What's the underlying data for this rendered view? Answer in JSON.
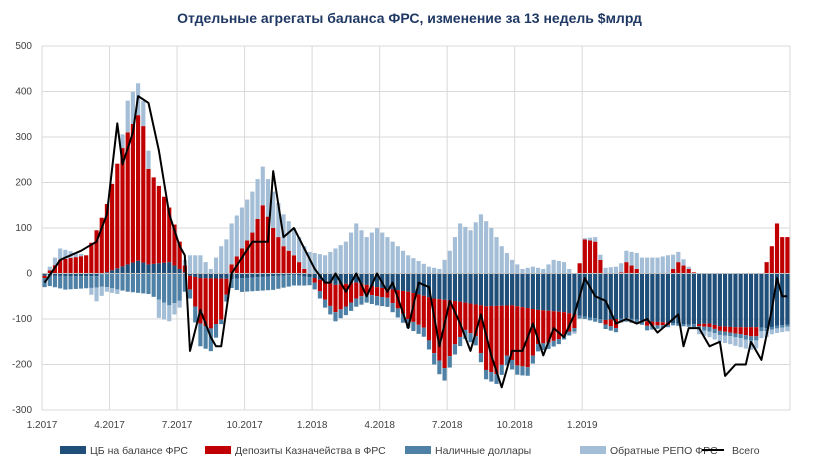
{
  "chart_data": {
    "type": "bar",
    "stacked": true,
    "title": "Отдельные агрегаты баланса ФРС, изменение за 13 недель $млрд",
    "xlabel": "",
    "ylabel": "",
    "ylim": [
      -300,
      500
    ],
    "yticks": [
      500,
      400,
      300,
      200,
      100,
      0,
      -100,
      -200,
      -300
    ],
    "grid": true,
    "legend_position": "bottom",
    "x_tick_labels": [
      "1.2017",
      "4.2017",
      "7.2017",
      "10.2017",
      "1.2018",
      "4.2018",
      "7.2018",
      "10.2018",
      "1.2019"
    ],
    "colors": {
      "cb": "#1f4e79",
      "treasury": "#c00000",
      "cash": "#4f81a6",
      "repo": "#a3bed6",
      "total": "#000000"
    },
    "series": [
      {
        "name": "ЦБ на балансе ФРС",
        "key": "cb",
        "anchors": [
          [
            0,
            -5
          ],
          [
            10,
            -6
          ],
          [
            16,
            20
          ],
          [
            18,
            28
          ],
          [
            20,
            20
          ],
          [
            24,
            25
          ],
          [
            28,
            -5
          ],
          [
            30,
            -10
          ],
          [
            36,
            -12
          ],
          [
            48,
            -3
          ],
          [
            52,
            -10
          ],
          [
            56,
            -25
          ],
          [
            60,
            -20
          ],
          [
            64,
            -30
          ],
          [
            70,
            -40
          ],
          [
            75,
            -55
          ],
          [
            80,
            -62
          ],
          [
            85,
            -72
          ],
          [
            90,
            -70
          ],
          [
            95,
            -80
          ],
          [
            100,
            -85
          ],
          [
            104,
            -95
          ],
          [
            108,
            -102
          ],
          [
            112,
            -98
          ],
          [
            116,
            -105
          ],
          [
            120,
            -108
          ],
          [
            124,
            -112
          ],
          [
            128,
            -110
          ],
          [
            130,
            -116
          ],
          [
            133,
            -118
          ],
          [
            137,
            -118
          ],
          [
            139,
            -120
          ],
          [
            141,
            -115
          ],
          [
            143,
            -112
          ]
        ]
      },
      {
        "name": "Депозиты Казначейства в ФРС",
        "key": "treasury",
        "anchors": [
          [
            0,
            -5
          ],
          [
            3,
            30
          ],
          [
            8,
            40
          ],
          [
            12,
            150
          ],
          [
            14,
            230
          ],
          [
            16,
            290
          ],
          [
            18,
            320
          ],
          [
            19,
            300
          ],
          [
            20,
            210
          ],
          [
            22,
            170
          ],
          [
            24,
            120
          ],
          [
            26,
            60
          ],
          [
            28,
            -30
          ],
          [
            30,
            -100
          ],
          [
            32,
            -110
          ],
          [
            34,
            -90
          ],
          [
            36,
            20
          ],
          [
            40,
            90
          ],
          [
            42,
            150
          ],
          [
            44,
            100
          ],
          [
            46,
            60
          ],
          [
            48,
            40
          ],
          [
            50,
            10
          ],
          [
            52,
            -10
          ],
          [
            54,
            -40
          ],
          [
            56,
            -60
          ],
          [
            58,
            -50
          ],
          [
            62,
            -20
          ],
          [
            66,
            -20
          ],
          [
            70,
            -60
          ],
          [
            73,
            -70
          ],
          [
            75,
            -120
          ],
          [
            77,
            -150
          ],
          [
            79,
            -95
          ],
          [
            81,
            -60
          ],
          [
            83,
            -70
          ],
          [
            85,
            -140
          ],
          [
            87,
            -150
          ],
          [
            89,
            -110
          ],
          [
            91,
            -130
          ],
          [
            93,
            -130
          ],
          [
            95,
            -75
          ],
          [
            97,
            -70
          ],
          [
            99,
            -60
          ],
          [
            102,
            -30
          ],
          [
            104,
            75
          ],
          [
            106,
            70
          ],
          [
            108,
            -10
          ],
          [
            110,
            -20
          ],
          [
            112,
            25
          ],
          [
            114,
            10
          ],
          [
            116,
            -10
          ],
          [
            120,
            -5
          ],
          [
            122,
            25
          ],
          [
            124,
            10
          ],
          [
            126,
            -5
          ],
          [
            130,
            -10
          ],
          [
            134,
            -15
          ],
          [
            136,
            -20
          ],
          [
            137,
            -20
          ],
          [
            138,
            0
          ],
          [
            139,
            25
          ],
          [
            140,
            60
          ],
          [
            141,
            110
          ],
          [
            142,
            80
          ]
        ]
      },
      {
        "name": "Наличные доллары",
        "key": "cash",
        "anchors": [
          [
            0,
            -20
          ],
          [
            4,
            -30
          ],
          [
            10,
            -25
          ],
          [
            16,
            -40
          ],
          [
            20,
            -45
          ],
          [
            24,
            -70
          ],
          [
            26,
            -60
          ],
          [
            28,
            -20
          ],
          [
            30,
            -50
          ],
          [
            32,
            -50
          ],
          [
            34,
            -10
          ],
          [
            38,
            -30
          ],
          [
            44,
            -30
          ],
          [
            50,
            -20
          ],
          [
            52,
            -15
          ],
          [
            56,
            -20
          ],
          [
            60,
            -18
          ],
          [
            64,
            -20
          ],
          [
            70,
            -20
          ],
          [
            74,
            -20
          ],
          [
            76,
            -30
          ],
          [
            80,
            -20
          ],
          [
            84,
            -20
          ],
          [
            88,
            -22
          ],
          [
            92,
            -20
          ],
          [
            96,
            -15
          ],
          [
            100,
            -10
          ],
          [
            104,
            -5
          ],
          [
            108,
            -10
          ],
          [
            112,
            -8
          ],
          [
            116,
            -10
          ],
          [
            120,
            -5
          ],
          [
            124,
            -5
          ],
          [
            128,
            -10
          ],
          [
            132,
            -8
          ],
          [
            136,
            -10
          ],
          [
            140,
            -6
          ],
          [
            143,
            -5
          ]
        ]
      },
      {
        "name": "Обратные РЕПО ФРС",
        "key": "repo",
        "anchors": [
          [
            0,
            0
          ],
          [
            3,
            25
          ],
          [
            8,
            0
          ],
          [
            10,
            -30
          ],
          [
            12,
            -10
          ],
          [
            14,
            -10
          ],
          [
            16,
            70
          ],
          [
            18,
            70
          ],
          [
            20,
            40
          ],
          [
            22,
            -40
          ],
          [
            24,
            -35
          ],
          [
            26,
            -15
          ],
          [
            28,
            40
          ],
          [
            30,
            40
          ],
          [
            32,
            10
          ],
          [
            34,
            60
          ],
          [
            36,
            90
          ],
          [
            40,
            90
          ],
          [
            44,
            80
          ],
          [
            48,
            60
          ],
          [
            50,
            50
          ],
          [
            52,
            45
          ],
          [
            54,
            40
          ],
          [
            58,
            70
          ],
          [
            60,
            110
          ],
          [
            62,
            80
          ],
          [
            64,
            100
          ],
          [
            66,
            80
          ],
          [
            68,
            60
          ],
          [
            70,
            40
          ],
          [
            74,
            15
          ],
          [
            76,
            10
          ],
          [
            78,
            50
          ],
          [
            80,
            110
          ],
          [
            82,
            95
          ],
          [
            84,
            130
          ],
          [
            86,
            100
          ],
          [
            88,
            60
          ],
          [
            90,
            30
          ],
          [
            92,
            10
          ],
          [
            94,
            15
          ],
          [
            96,
            10
          ],
          [
            98,
            30
          ],
          [
            100,
            25
          ],
          [
            102,
            -5
          ],
          [
            106,
            10
          ],
          [
            110,
            15
          ],
          [
            114,
            35
          ],
          [
            118,
            35
          ],
          [
            120,
            40
          ],
          [
            124,
            5
          ],
          [
            126,
            -10
          ],
          [
            130,
            -15
          ],
          [
            134,
            -20
          ],
          [
            136,
            -20
          ],
          [
            138,
            -15
          ],
          [
            140,
            -10
          ],
          [
            143,
            -10
          ]
        ]
      },
      {
        "name": "Всего",
        "key": "total",
        "type": "line",
        "anchors": [
          [
            0,
            -20
          ],
          [
            3,
            30
          ],
          [
            7,
            50
          ],
          [
            10,
            70
          ],
          [
            12,
            130
          ],
          [
            14,
            330
          ],
          [
            15,
            240
          ],
          [
            17,
            310
          ],
          [
            18,
            390
          ],
          [
            20,
            375
          ],
          [
            22,
            270
          ],
          [
            24,
            130
          ],
          [
            26,
            60
          ],
          [
            27,
            40
          ],
          [
            28,
            -170
          ],
          [
            30,
            -80
          ],
          [
            32,
            -140
          ],
          [
            33,
            -160
          ],
          [
            34,
            -160
          ],
          [
            36,
            0
          ],
          [
            40,
            70
          ],
          [
            43,
            70
          ],
          [
            44,
            225
          ],
          [
            46,
            80
          ],
          [
            48,
            100
          ],
          [
            50,
            55
          ],
          [
            52,
            10
          ],
          [
            54,
            -20
          ],
          [
            55,
            -20
          ],
          [
            56,
            0
          ],
          [
            58,
            -40
          ],
          [
            60,
            0
          ],
          [
            62,
            -50
          ],
          [
            64,
            0
          ],
          [
            66,
            -40
          ],
          [
            67,
            -20
          ],
          [
            70,
            -120
          ],
          [
            72,
            -20
          ],
          [
            74,
            -30
          ],
          [
            76,
            -160
          ],
          [
            78,
            -60
          ],
          [
            80,
            -110
          ],
          [
            82,
            -170
          ],
          [
            84,
            -90
          ],
          [
            86,
            -180
          ],
          [
            88,
            -250
          ],
          [
            90,
            -170
          ],
          [
            92,
            -170
          ],
          [
            94,
            -110
          ],
          [
            96,
            -180
          ],
          [
            98,
            -120
          ],
          [
            100,
            -140
          ],
          [
            102,
            -90
          ],
          [
            104,
            -10
          ],
          [
            106,
            -50
          ],
          [
            108,
            -60
          ],
          [
            110,
            -110
          ],
          [
            112,
            -100
          ],
          [
            114,
            -110
          ],
          [
            116,
            -100
          ],
          [
            118,
            -130
          ],
          [
            120,
            -110
          ],
          [
            122,
            -90
          ],
          [
            123,
            -160
          ],
          [
            124,
            -120
          ],
          [
            126,
            -120
          ],
          [
            128,
            -160
          ],
          [
            130,
            -150
          ],
          [
            131,
            -225
          ],
          [
            133,
            -200
          ],
          [
            135,
            -200
          ],
          [
            136,
            -150
          ],
          [
            138,
            -190
          ],
          [
            140,
            -80
          ],
          [
            141,
            -10
          ],
          [
            142,
            -50
          ]
        ]
      }
    ]
  }
}
